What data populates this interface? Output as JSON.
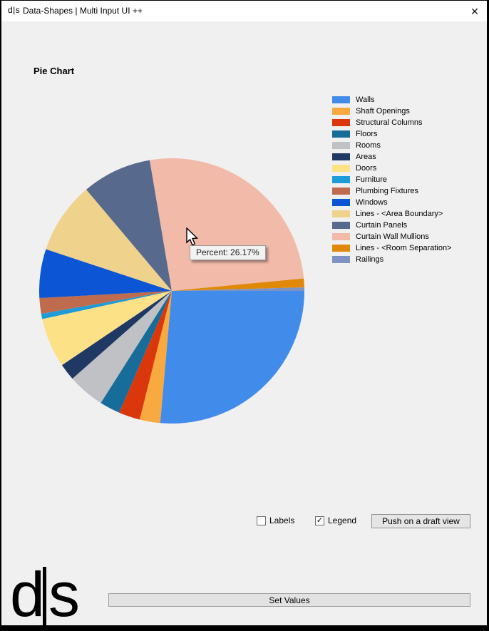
{
  "window": {
    "title": "Data-Shapes | Multi Input UI ++",
    "icon_text": "d|s",
    "close_glyph": "✕"
  },
  "page": {
    "heading": "Pie Chart"
  },
  "chart_data": {
    "type": "pie",
    "title": "Pie Chart",
    "start_angle_deg": 0,
    "direction": "clockwise",
    "legend_position": "right",
    "hovered_slice": "Curtain Wall Mullions",
    "series": [
      {
        "label": "Walls",
        "percent": 26.4,
        "color": "#418BEA"
      },
      {
        "label": "Shaft Openings",
        "percent": 2.5,
        "color": "#F8A93F"
      },
      {
        "label": "Structural Columns",
        "percent": 2.6,
        "color": "#DA380C"
      },
      {
        "label": "Floors",
        "percent": 2.5,
        "color": "#176C99"
      },
      {
        "label": "Rooms",
        "percent": 4.5,
        "color": "#BFC1C4"
      },
      {
        "label": "Areas",
        "percent": 2.05,
        "color": "#1F3864"
      },
      {
        "label": "Doors",
        "percent": 6.05,
        "color": "#FDE187"
      },
      {
        "label": "Furniture",
        "percent": 0.65,
        "color": "#1E9CD8"
      },
      {
        "label": "Plumbing Fixtures",
        "percent": 1.9,
        "color": "#BF6B4D"
      },
      {
        "label": "Windows",
        "percent": 5.95,
        "color": "#0C55D4"
      },
      {
        "label": "Lines - <Area Boundary>",
        "percent": 8.75,
        "color": "#EFD28C"
      },
      {
        "label": "Curtain Panels",
        "percent": 8.5,
        "color": "#57698C"
      },
      {
        "label": "Curtain Wall Mullions",
        "percent": 26.17,
        "color": "#F1BAA9"
      },
      {
        "label": "Lines - <Room Separation>",
        "percent": 1.08,
        "color": "#E08908"
      },
      {
        "label": "Railings",
        "percent": 0.42,
        "color": "#7E93C4"
      }
    ]
  },
  "tooltip": {
    "text": "Percent: 26.17%"
  },
  "controls": {
    "labels_checkbox": {
      "label": "Labels",
      "checked": false
    },
    "legend_checkbox": {
      "label": "Legend",
      "checked": true
    },
    "check_glyph": "✓",
    "push_button": "Push on a draft view"
  },
  "footer": {
    "logo_text": "d|s",
    "logo_d": "d",
    "logo_s": "s",
    "set_values_button": "Set Values"
  }
}
